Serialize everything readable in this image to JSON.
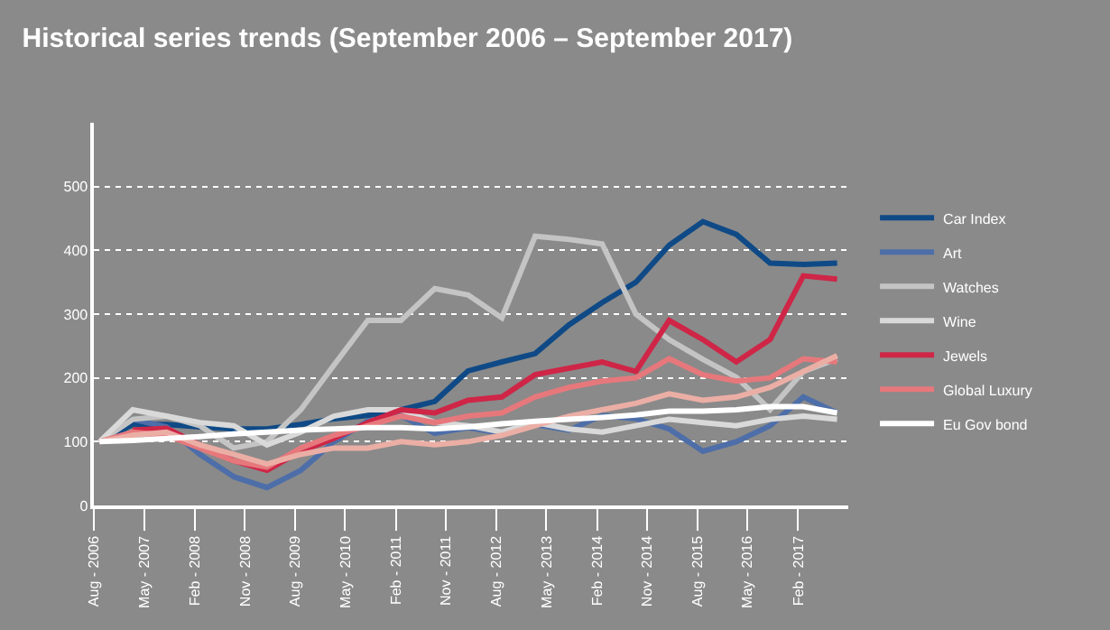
{
  "chart_data": {
    "type": "line",
    "title": "Historical series trends (September 2006 – September 2017)",
    "x": [
      "2006-09",
      "2007-03",
      "2007-09",
      "2008-03",
      "2008-09",
      "2009-03",
      "2009-09",
      "2010-03",
      "2010-09",
      "2011-03",
      "2011-09",
      "2012-03",
      "2012-09",
      "2013-03",
      "2013-09",
      "2014-03",
      "2014-09",
      "2015-03",
      "2015-09",
      "2016-03",
      "2016-09",
      "2017-03",
      "2017-09"
    ],
    "series": [
      {
        "name": "Car Index",
        "color": "#0f4a86",
        "values": [
          100,
          127,
          127,
          123,
          120,
          120,
          127,
          136,
          141,
          150,
          163,
          211,
          225,
          238,
          283,
          318,
          350,
          408,
          445,
          425,
          380,
          378,
          380
        ]
      },
      {
        "name": "Art",
        "color": "#4d6ea8",
        "values": [
          100,
          135,
          123,
          80,
          45,
          28,
          55,
          100,
          132,
          141,
          113,
          122,
          113,
          127,
          118,
          141,
          136,
          120,
          85,
          100,
          125,
          170,
          145
        ]
      },
      {
        "name": "Watches",
        "color": "#c4c4c4",
        "values": [
          100,
          135,
          140,
          125,
          90,
          100,
          150,
          220,
          290,
          290,
          340,
          330,
          294,
          422,
          417,
          410,
          300,
          260,
          229,
          201,
          150,
          210,
          230
        ]
      },
      {
        "name": "Wine",
        "color": "#d9d9d9",
        "values": [
          100,
          150,
          140,
          130,
          125,
          95,
          115,
          140,
          150,
          150,
          130,
          125,
          115,
          130,
          120,
          115,
          125,
          135,
          130,
          125,
          135,
          140,
          135
        ]
      },
      {
        "name": "Jewels",
        "color": "#cf2647",
        "values": [
          null,
          118,
          121,
          95,
          70,
          55,
          85,
          105,
          130,
          150,
          145,
          165,
          170,
          205,
          215,
          225,
          210,
          290,
          260,
          225,
          260,
          360,
          355
        ]
      },
      {
        "name": "Global Luxury",
        "color": "#e6787c",
        "values": [
          100,
          115,
          110,
          90,
          70,
          60,
          90,
          110,
          125,
          140,
          130,
          140,
          145,
          170,
          185,
          195,
          200,
          230,
          205,
          195,
          200,
          230,
          225
        ]
      },
      {
        "color": "#ebaea5",
        "values": [
          100,
          110,
          115,
          95,
          80,
          65,
          80,
          90,
          90,
          100,
          95,
          100,
          110,
          125,
          140,
          150,
          160,
          175,
          165,
          170,
          185,
          210,
          235
        ]
      },
      {
        "name": "Eu Gov bond",
        "color": "#ffffff",
        "values": [
          100,
          102,
          105,
          108,
          112,
          115,
          118,
          120,
          122,
          122,
          120,
          123,
          128,
          132,
          135,
          138,
          142,
          148,
          148,
          150,
          155,
          155,
          145
        ]
      }
    ],
    "xlim": [
      "2006-08",
      "2017-11"
    ],
    "xticks": [
      {
        "value": "2006-08",
        "label": "Aug - 2006"
      },
      {
        "value": "2007-05",
        "label": "May - 2007"
      },
      {
        "value": "2008-02",
        "label": "Feb - 2008"
      },
      {
        "value": "2008-11",
        "label": "Nov - 2008"
      },
      {
        "value": "2009-08",
        "label": "Aug - 2009"
      },
      {
        "value": "2010-05",
        "label": "May - 2010"
      },
      {
        "value": "2011-02",
        "label": "Feb - 2011"
      },
      {
        "value": "2011-11",
        "label": "Nov - 2011"
      },
      {
        "value": "2012-08",
        "label": "Aug - 2012"
      },
      {
        "value": "2013-05",
        "label": "May - 2013"
      },
      {
        "value": "2014-02",
        "label": "Feb - 2014"
      },
      {
        "value": "2014-11",
        "label": "Nov - 2014"
      },
      {
        "value": "2015-08",
        "label": "Aug - 2015"
      },
      {
        "value": "2016-05",
        "label": "May - 2016"
      },
      {
        "value": "2017-02",
        "label": "Feb - 2017"
      }
    ],
    "ylim": [
      0,
      600
    ],
    "yticks": [
      0,
      100,
      200,
      300,
      400,
      500
    ],
    "grid": "y",
    "legend": "right",
    "marker": "none",
    "line_style": "solid"
  }
}
